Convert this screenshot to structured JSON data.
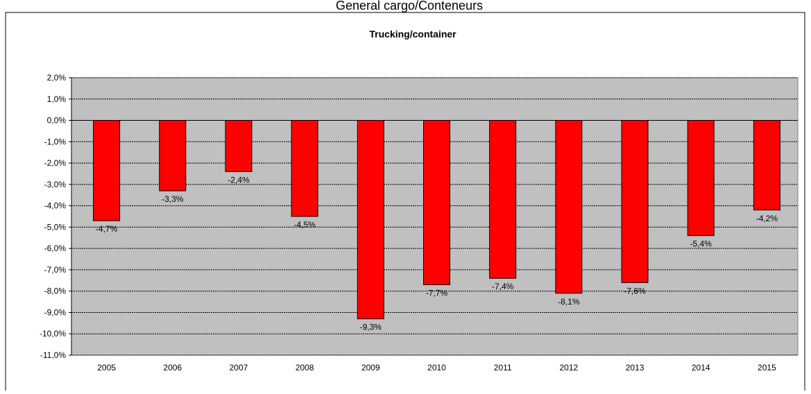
{
  "heading": "General cargo/Conteneurs",
  "chart_data": {
    "type": "bar",
    "title": "Trucking/container",
    "categories": [
      "2005",
      "2006",
      "2007",
      "2008",
      "2009",
      "2010",
      "2011",
      "2012",
      "2013",
      "2014",
      "2015"
    ],
    "values": [
      -4.7,
      -3.3,
      -2.4,
      -4.5,
      -9.3,
      -7.7,
      -7.4,
      -8.1,
      -7.6,
      -5.4,
      -4.2
    ],
    "value_labels": [
      "-4,7%",
      "-3,3%",
      "-2,4%",
      "-4,5%",
      "-9,3%",
      "-7,7%",
      "-7,4%",
      "-8,1%",
      "-7,6%",
      "-5,4%",
      "-4,2%"
    ],
    "color": "#ff0000",
    "ylim": [
      -11,
      2
    ],
    "yticks": [
      {
        "value": 2,
        "label": "2,0%"
      },
      {
        "value": 1,
        "label": "1,0%"
      },
      {
        "value": 0,
        "label": "0,0%"
      },
      {
        "value": -1,
        "label": "-1,0%"
      },
      {
        "value": -2,
        "label": "-2,0%"
      },
      {
        "value": -3,
        "label": "-3,0%"
      },
      {
        "value": -4,
        "label": "-4,0%"
      },
      {
        "value": -5,
        "label": "-5,0%"
      },
      {
        "value": -6,
        "label": "-6,0%"
      },
      {
        "value": -7,
        "label": "-7,0%"
      },
      {
        "value": -8,
        "label": "-8,0%"
      },
      {
        "value": -9,
        "label": "-9,0%"
      },
      {
        "value": -10,
        "label": "-10,0%"
      },
      {
        "value": -11,
        "label": "-11,0%"
      }
    ],
    "grid": true
  }
}
